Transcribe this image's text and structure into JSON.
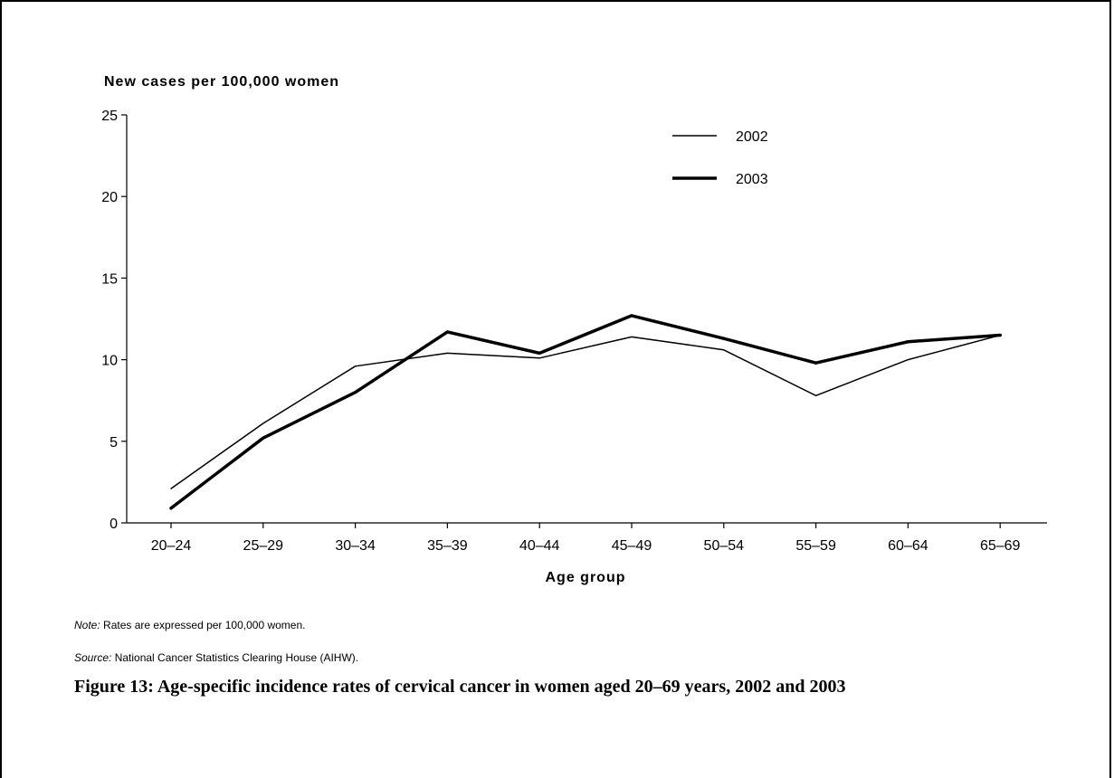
{
  "chart_data": {
    "type": "line",
    "ylabel": "New cases per 100,000 women",
    "xlabel": "Age group",
    "categories": [
      "20–24",
      "25–29",
      "30–34",
      "35–39",
      "40–44",
      "45–49",
      "50–54",
      "55–59",
      "60–64",
      "65–69"
    ],
    "ylim": [
      0,
      25
    ],
    "yticks": [
      "0",
      "5",
      "10",
      "15",
      "20",
      "25"
    ],
    "grid": false,
    "legend_position": "top-right",
    "series": [
      {
        "name": "2002",
        "values": [
          2.1,
          6.1,
          9.6,
          10.4,
          10.1,
          11.4,
          10.6,
          7.8,
          10.0,
          11.5
        ]
      },
      {
        "name": "2003",
        "values": [
          0.9,
          5.2,
          8.0,
          11.7,
          10.4,
          12.7,
          11.3,
          9.8,
          11.1,
          11.5
        ]
      }
    ]
  },
  "note": {
    "label": "Note:",
    "text": " Rates are expressed per 100,000 women."
  },
  "source": {
    "label": "Source:",
    "text": " National Cancer Statistics Clearing House (AIHW)."
  },
  "caption": "Figure 13: Age-specific incidence rates of cervical cancer in women aged 20–69 years, 2002 and 2003"
}
